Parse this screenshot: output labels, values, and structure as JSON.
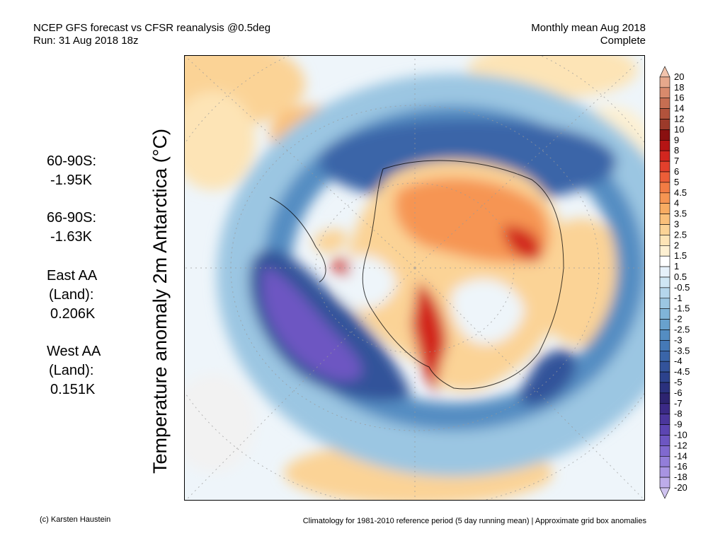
{
  "header": {
    "title_line1": "NCEP GFS forecast vs CFSR reanalysis @0.5deg",
    "title_line2": "Run: 31 Aug 2018 18z",
    "period_line1": "Monthly mean Aug 2018",
    "period_line2": "Complete"
  },
  "ylabel": "Temperature anomaly 2m Antarctica (°C)",
  "stats": [
    {
      "label": "60-90S:",
      "value": "-1.95K"
    },
    {
      "label": "66-90S:",
      "value": "-1.63K"
    },
    {
      "label": "East AA",
      "label2": "(Land):",
      "value": "0.206K"
    },
    {
      "label": "West AA",
      "label2": "(Land):",
      "value": "0.151K"
    }
  ],
  "colorbar": {
    "labels": [
      "20",
      "18",
      "16",
      "14",
      "12",
      "10",
      "9",
      "8",
      "7",
      "6",
      "5",
      "4.5",
      "4",
      "3.5",
      "3",
      "2.5",
      "2",
      "1.5",
      "1",
      "0.5",
      "-0.5",
      "-1",
      "-1.5",
      "-2",
      "-2.5",
      "-3",
      "-3.5",
      "-4",
      "-4.5",
      "-5",
      "-6",
      "-7",
      "-8",
      "-9",
      "-10",
      "-12",
      "-14",
      "-16",
      "-18",
      "-20"
    ],
    "colors": [
      "#f2c4ad",
      "#e6a88c",
      "#d88a6c",
      "#c66e52",
      "#b2533c",
      "#9c3a2a",
      "#8a1010",
      "#b51414",
      "#d2261f",
      "#e2402c",
      "#ec5e38",
      "#f27c44",
      "#f69552",
      "#f8ac62",
      "#fac07a",
      "#fbd396",
      "#fde4b6",
      "#fdf0d2",
      "#ffffff",
      "#e6f1fa",
      "#cfe6f4",
      "#b5d6ec",
      "#9bc6e2",
      "#80b4d8",
      "#68a1cd",
      "#548dc2",
      "#4579b6",
      "#3a65a8",
      "#33539a",
      "#2c428c",
      "#2a317d",
      "#2d2470",
      "#3b2a86",
      "#4b369c",
      "#5c45b2",
      "#6d56c2",
      "#8069cf",
      "#937ed9",
      "#a894e2",
      "#bdacea",
      "#d0c4f0"
    ]
  },
  "footer": {
    "credit": "(c) Karsten Haustein",
    "note": "Climatology for 1981-2010 reference period (5 day running mean) | Approximate grid box anomalies"
  }
}
